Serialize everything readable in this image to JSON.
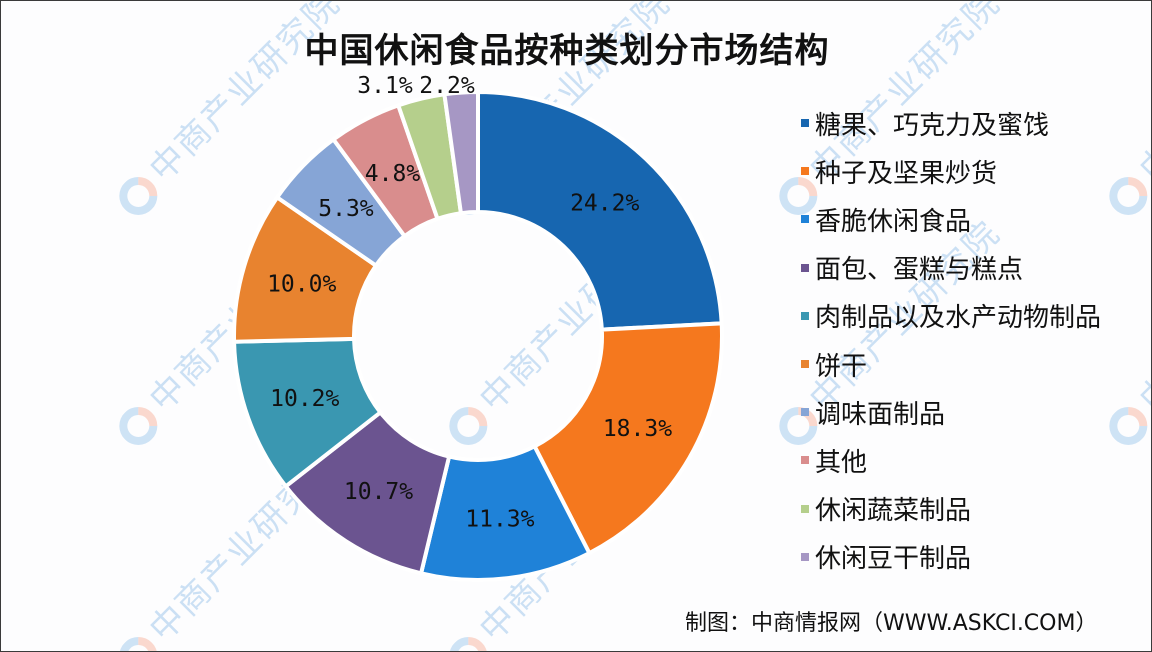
{
  "chart_data": {
    "type": "pie",
    "subtype": "donut",
    "title": "中国休闲食品按种类划分市场结构",
    "categories": [
      "糖果、巧克力及蜜饯",
      "种子及坚果炒货",
      "香脆休闲食品",
      "面包、蛋糕与糕点",
      "肉制品以及水产动物制品",
      "饼干",
      "调味面制品",
      "其他",
      "休闲蔬菜制品",
      "休闲豆干制品"
    ],
    "values": [
      24.2,
      18.3,
      11.3,
      10.7,
      10.2,
      10.0,
      5.3,
      4.8,
      3.1,
      2.2
    ],
    "value_labels": [
      "24.2%",
      "18.3%",
      "11.3%",
      "10.7%",
      "10.2%",
      "10.0%",
      "5.3%",
      "4.8%",
      "3.1%",
      "2.2%"
    ],
    "colors": [
      "#1766b0",
      "#f5781e",
      "#1f82d8",
      "#6b5490",
      "#3a97b1",
      "#e8832f",
      "#86a5d6",
      "#d98d8d",
      "#b5cf8c",
      "#a697c4"
    ],
    "unit": "%",
    "legend_position": "right",
    "start_angle": "12 o'clock, clockwise"
  },
  "title": "中国休闲食品按种类划分市场结构",
  "source": "制图：中商情报网（WWW.ASKCI.COM）",
  "watermark": "中商产业研究院"
}
